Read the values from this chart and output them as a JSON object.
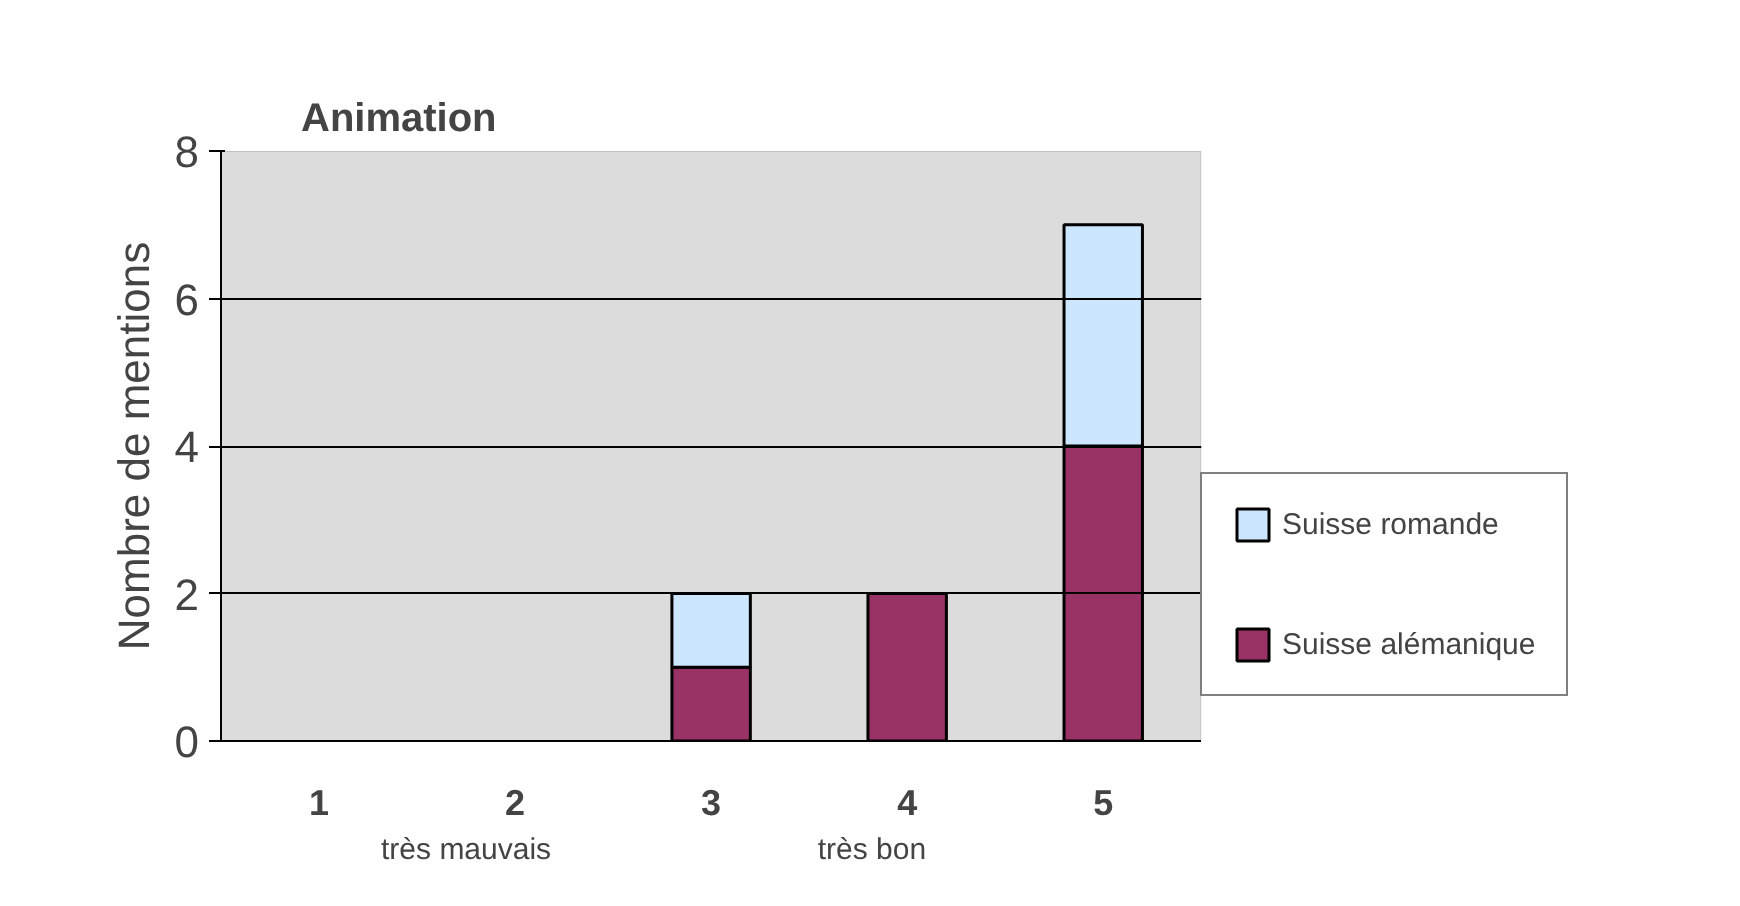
{
  "chart_data": {
    "type": "bar",
    "title": "Animation",
    "ylabel": "Nombre de mentions",
    "categories": [
      "1",
      "2",
      "3",
      "4",
      "5"
    ],
    "stacked": true,
    "series": [
      {
        "name": "Suisse alémanique",
        "color": "#993366",
        "values": [
          0,
          0,
          1,
          2,
          4
        ]
      },
      {
        "name": "Suisse romande",
        "color": "#cce6ff",
        "values": [
          0,
          0,
          1,
          0,
          3
        ]
      }
    ],
    "ylim": [
      0,
      8
    ],
    "yticks": [
      0,
      2,
      4,
      6,
      8
    ],
    "grid": "y",
    "legend": "right",
    "annotations": [
      "très mauvais",
      "très bon"
    ]
  }
}
